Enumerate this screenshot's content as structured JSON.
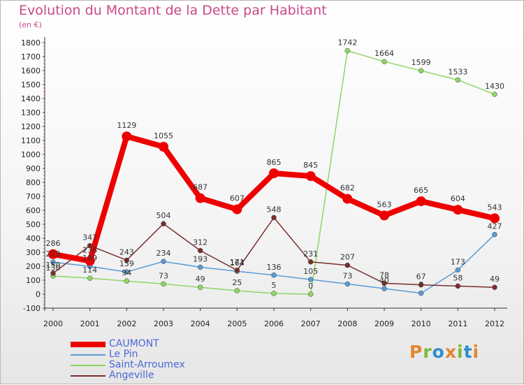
{
  "title": "Evolution du Montant de la Dette par Habitant",
  "subtitle": "(en €)",
  "logo": [
    "P",
    "r",
    "o",
    "x",
    "i",
    "t",
    "i"
  ],
  "logo_colors": [
    "#e8842c",
    "#7cb83a",
    "#2d8fd0",
    "#e8842c",
    "#7cb83a",
    "#2d8fd0",
    "#e8842c"
  ],
  "chart_data": {
    "type": "line",
    "x": [
      "2000",
      "2001",
      "2002",
      "2003",
      "2004",
      "2005",
      "2006",
      "2007",
      "2008",
      "2009",
      "2010",
      "2011",
      "2012"
    ],
    "yticks": [
      "-100",
      "0",
      "100",
      "200",
      "300",
      "400",
      "500",
      "600",
      "700",
      "800",
      "900",
      "1000",
      "1100",
      "1200",
      "1300",
      "1400",
      "1500",
      "1600",
      "1700",
      "1800"
    ],
    "ylim": [
      -100,
      1800
    ],
    "grid": false,
    "legend_position": "bottom-left",
    "series": [
      {
        "name": "CAUMONT",
        "color": "#ee0000",
        "width": 8,
        "radius": 7,
        "values": [
          286,
          238,
          1129,
          1055,
          687,
          607,
          865,
          845,
          682,
          563,
          665,
          604,
          543
        ],
        "labels": [
          "286",
          "238",
          "1129",
          "1055",
          "687",
          "607",
          "865",
          "845",
          "682",
          "563",
          "665",
          "604",
          "543"
        ]
      },
      {
        "name": "Le Pin",
        "color": "#5b9bd5",
        "width": 1.5,
        "radius": 3.5,
        "values": [
          229,
          199,
          159,
          234,
          193,
          164,
          136,
          105,
          73,
          40,
          7,
          173,
          427
        ],
        "labels": [
          "229",
          "199",
          "159",
          "234",
          "193",
          "164",
          "136",
          "105",
          "73",
          "40",
          "7",
          "173",
          "427"
        ]
      },
      {
        "name": "Saint-Arroumex",
        "color": "#8fd664",
        "width": 1.5,
        "radius": 3.5,
        "values": [
          130,
          114,
          94,
          73,
          49,
          25,
          5,
          0,
          1742,
          1664,
          1599,
          1533,
          1430
        ],
        "labels": [
          "130",
          "114",
          "94",
          "73",
          "49",
          "25",
          "5",
          "0",
          "1742",
          "1664",
          "1599",
          "1533",
          "1430"
        ]
      },
      {
        "name": "Angeville",
        "color": "#7a2e2e",
        "width": 1.5,
        "radius": 3.5,
        "values": [
          150,
          347,
          243,
          504,
          312,
          171,
          548,
          231,
          207,
          78,
          67,
          58,
          49
        ],
        "labels": [
          "150",
          "347",
          "243",
          "504",
          "312",
          "171",
          "548",
          "231",
          "207",
          "78",
          "67",
          "58",
          "49"
        ]
      }
    ]
  }
}
